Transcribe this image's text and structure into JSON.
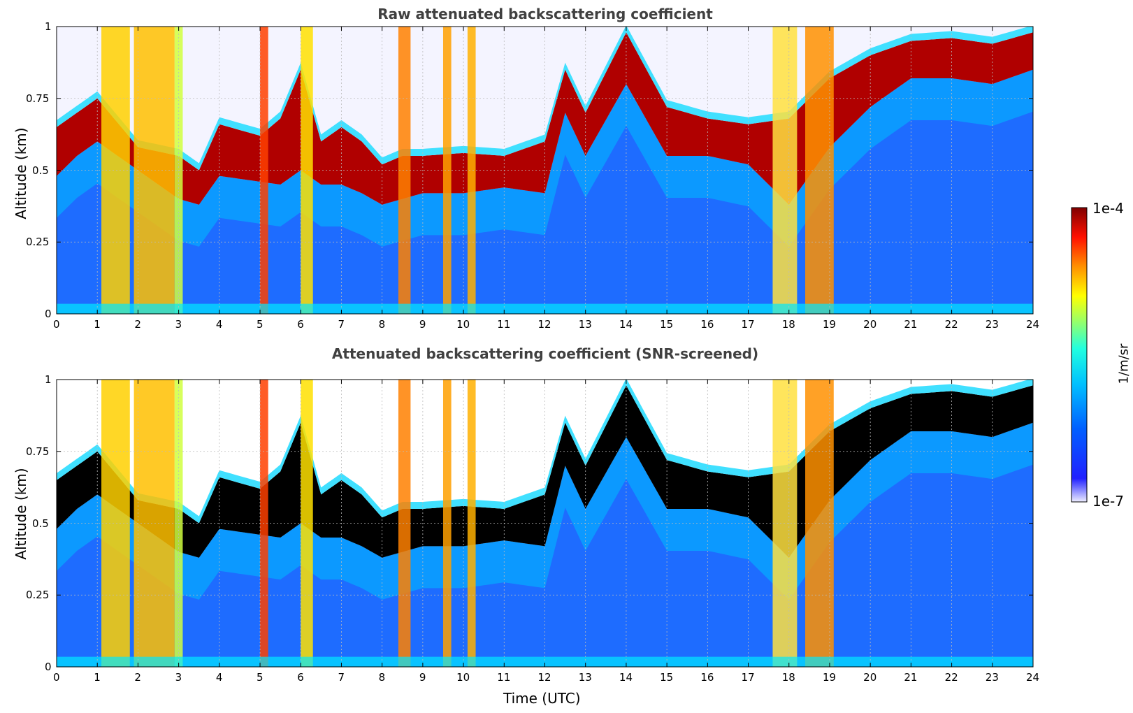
{
  "chart_data": [
    {
      "type": "heatmap",
      "title": "Raw attenuated backscattering coefficient",
      "xlabel": "",
      "ylabel": "Altitude (km)",
      "xlim": [
        0,
        24
      ],
      "ylim": [
        0,
        1
      ],
      "xticks": [
        "0",
        "1",
        "2",
        "3",
        "4",
        "5",
        "6",
        "7",
        "8",
        "9",
        "10",
        "11",
        "12",
        "13",
        "14",
        "15",
        "16",
        "17",
        "18",
        "19",
        "20",
        "21",
        "22",
        "23",
        "24"
      ],
      "yticks": [
        "0",
        "0.25",
        "0.5",
        "0.75",
        "1"
      ],
      "ytick_values": [
        0,
        0.25,
        0.5,
        0.75,
        1
      ],
      "layer_top_km": [
        [
          0,
          0.65
        ],
        [
          0.5,
          0.7
        ],
        [
          1,
          0.75
        ],
        [
          2,
          0.58
        ],
        [
          3,
          0.55
        ],
        [
          3.5,
          0.5
        ],
        [
          4,
          0.66
        ],
        [
          5,
          0.62
        ],
        [
          5.5,
          0.68
        ],
        [
          6,
          0.85
        ],
        [
          6.5,
          0.6
        ],
        [
          7,
          0.65
        ],
        [
          7.5,
          0.6
        ],
        [
          8,
          0.52
        ],
        [
          8.5,
          0.55
        ],
        [
          9,
          0.55
        ],
        [
          10,
          0.56
        ],
        [
          11,
          0.55
        ],
        [
          12,
          0.6
        ],
        [
          12.5,
          0.85
        ],
        [
          13,
          0.7
        ],
        [
          14,
          0.98
        ],
        [
          15,
          0.72
        ],
        [
          16,
          0.68
        ],
        [
          17,
          0.66
        ],
        [
          18,
          0.68
        ],
        [
          19,
          0.82
        ],
        [
          20,
          0.9
        ],
        [
          21,
          0.95
        ],
        [
          22,
          0.96
        ],
        [
          23,
          0.94
        ],
        [
          24,
          0.98
        ]
      ],
      "layer_bottom_km": [
        [
          0,
          0.48
        ],
        [
          0.5,
          0.55
        ],
        [
          1,
          0.6
        ],
        [
          2,
          0.5
        ],
        [
          3,
          0.4
        ],
        [
          3.5,
          0.38
        ],
        [
          4,
          0.48
        ],
        [
          5,
          0.46
        ],
        [
          5.5,
          0.45
        ],
        [
          6,
          0.5
        ],
        [
          6.5,
          0.45
        ],
        [
          7,
          0.45
        ],
        [
          7.5,
          0.42
        ],
        [
          8,
          0.38
        ],
        [
          8.5,
          0.4
        ],
        [
          9,
          0.42
        ],
        [
          10,
          0.42
        ],
        [
          11,
          0.44
        ],
        [
          12,
          0.42
        ],
        [
          12.5,
          0.7
        ],
        [
          13,
          0.55
        ],
        [
          14,
          0.8
        ],
        [
          15,
          0.55
        ],
        [
          16,
          0.55
        ],
        [
          17,
          0.52
        ],
        [
          18,
          0.38
        ],
        [
          19,
          0.58
        ],
        [
          20,
          0.72
        ],
        [
          21,
          0.82
        ],
        [
          22,
          0.82
        ],
        [
          23,
          0.8
        ],
        [
          24,
          0.85
        ]
      ]
    },
    {
      "type": "heatmap",
      "title": "Attenuated backscattering coefficient (SNR-screened)",
      "xlabel": "Time (UTC)",
      "ylabel": "Altitude (km)",
      "xlim": [
        0,
        24
      ],
      "ylim": [
        0,
        1
      ],
      "xticks": [
        "0",
        "1",
        "2",
        "3",
        "4",
        "5",
        "6",
        "7",
        "8",
        "9",
        "10",
        "11",
        "12",
        "13",
        "14",
        "15",
        "16",
        "17",
        "18",
        "19",
        "20",
        "21",
        "22",
        "23",
        "24"
      ],
      "yticks": [
        "0",
        "0.25",
        "0.5",
        "0.75",
        "1"
      ],
      "ytick_values": [
        0,
        0.25,
        0.5,
        0.75,
        1
      ],
      "saturated_color": "#000000"
    }
  ],
  "colorbar": {
    "label": "1/m/sr",
    "min_label": "1e-7",
    "max_label": "1e-4",
    "colormap": "jet",
    "colors": [
      "#eeeeff",
      "#0000ff",
      "#00a0ff",
      "#00ffff",
      "#80ff80",
      "#ffff00",
      "#ff8000",
      "#ff0000",
      "#800000"
    ]
  }
}
